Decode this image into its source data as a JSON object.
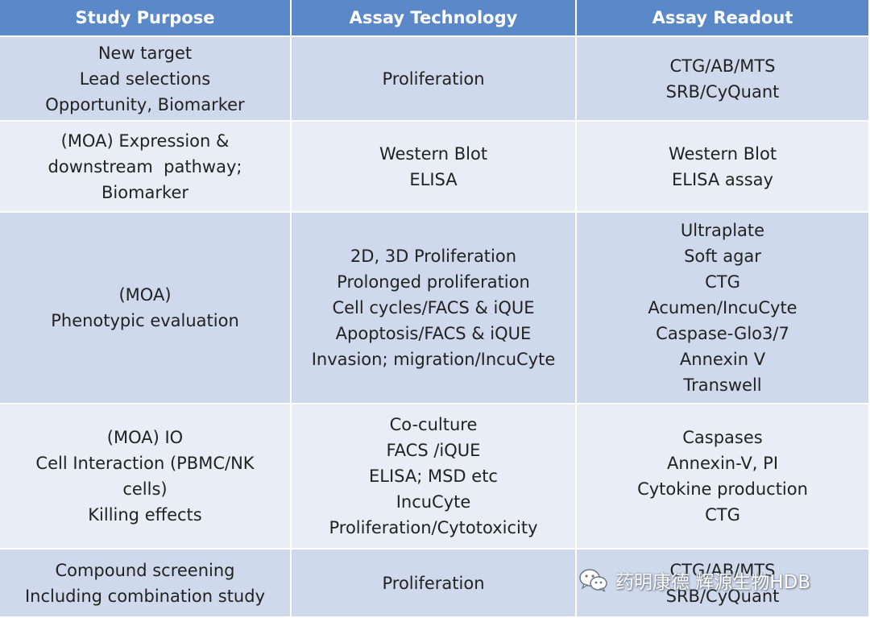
{
  "headers": [
    "Study Purpose",
    "Assay Technology",
    "Assay Readout"
  ],
  "rows": [
    {
      "purpose": [
        "New target",
        "Lead selections",
        "Opportunity, Biomarker"
      ],
      "technology": [
        "Proliferation"
      ],
      "readout": [
        "CTG/AB/MTS",
        "SRB/CyQuant"
      ]
    },
    {
      "purpose": [
        "(MOA) Expression &",
        "downstream  pathway;",
        "Biomarker"
      ],
      "technology": [
        "Western Blot",
        "ELISA"
      ],
      "readout": [
        "Western Blot",
        "ELISA assay"
      ]
    },
    {
      "purpose": [
        "(MOA)",
        "Phenotypic evaluation"
      ],
      "technology": [
        "2D, 3D Proliferation",
        "Prolonged proliferation",
        "Cell cycles/FACS & iQUE",
        "Apoptosis/FACS & iQUE",
        "Invasion; migration/IncuCyte"
      ],
      "readout": [
        "Ultraplate",
        "Soft agar",
        "CTG",
        "Acumen/IncuCyte",
        "Caspase-Glo3/7",
        "Annexin V",
        "Transwell"
      ]
    },
    {
      "purpose": [
        "(MOA) IO",
        "Cell Interaction (PBMC/NK",
        "cells)",
        "Killing effects"
      ],
      "technology": [
        "Co-culture",
        "FACS /iQUE",
        "ELISA; MSD etc",
        "IncuCyte",
        "Proliferation/Cytotoxicity"
      ],
      "readout": [
        "Caspases",
        "Annexin-V, PI",
        "Cytokine production",
        "CTG"
      ]
    },
    {
      "purpose": [
        "Compound screening",
        "Including combination study"
      ],
      "technology": [
        "Proliferation"
      ],
      "readout": [
        "CTG/AB/MTS",
        "SRB/CyQuant"
      ]
    }
  ],
  "watermark": {
    "text": "药明康德 辉源生物HDB",
    "icon": "wechat-icon"
  },
  "colors": {
    "header_bg": "#5b88c8",
    "row_dark": "#cfd9ec",
    "row_light": "#e8edf6"
  }
}
